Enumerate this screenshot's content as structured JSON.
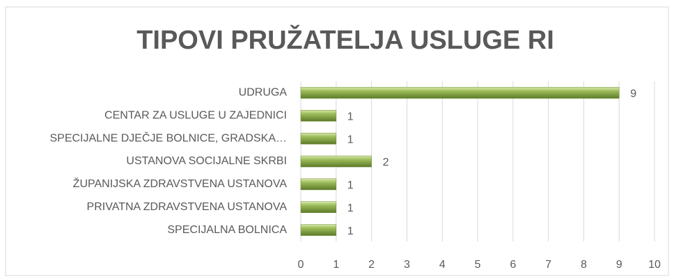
{
  "chart_data": {
    "type": "hbar",
    "title": "TIPOVI PRUŽATELJA USLUGE RI",
    "categories": [
      "UDRUGA",
      "CENTAR ZA USLUGE U ZAJEDNICI",
      "SPECIJALNE DJEČJE BOLNICE, GRADSKA…",
      "USTANOVA SOCIJALNE SKRBI",
      "ŽUPANIJSKA ZDRAVSTVENA USTANOVA",
      "PRIVATNA ZDRAVSTVENA USTANOVA",
      "SPECIJALNA BOLNICA"
    ],
    "values": [
      9,
      1,
      1,
      2,
      1,
      1,
      1
    ],
    "color": "#9bbb59",
    "xlim": [
      0,
      10
    ],
    "xticks": [
      0,
      1,
      2,
      3,
      4,
      5,
      6,
      7,
      8,
      9,
      10
    ],
    "grid": true
  }
}
